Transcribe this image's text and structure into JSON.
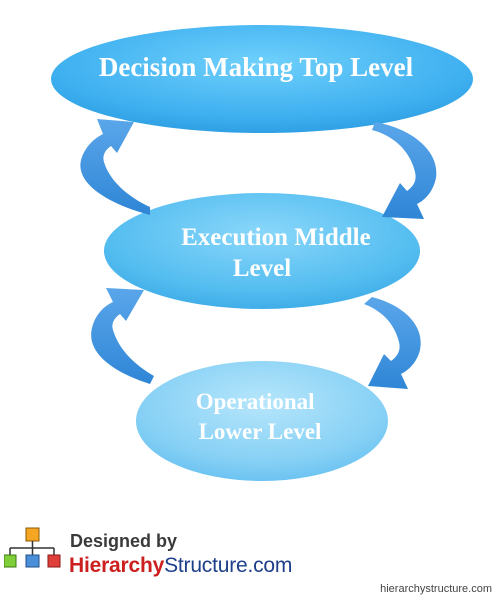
{
  "diagram": {
    "nodes": [
      {
        "id": "top",
        "lines": [
          "Decision Making Top Level"
        ]
      },
      {
        "id": "middle",
        "lines": [
          "Execution Middle",
          "Level"
        ]
      },
      {
        "id": "lower",
        "lines": [
          "Operational",
          "Lower Level"
        ]
      }
    ],
    "colors": {
      "node_light": "#9fdcf8",
      "node_mid": "#4fb8ef",
      "node_dark": "#2f9fe2",
      "arrow": "#3d8fdd"
    }
  },
  "logo": {
    "designed_by": "Designed by",
    "brand_part1": "Hierarchy",
    "brand_part2": "Structure",
    "brand_part3": ".com"
  },
  "watermark": "hierarchystructure.com"
}
